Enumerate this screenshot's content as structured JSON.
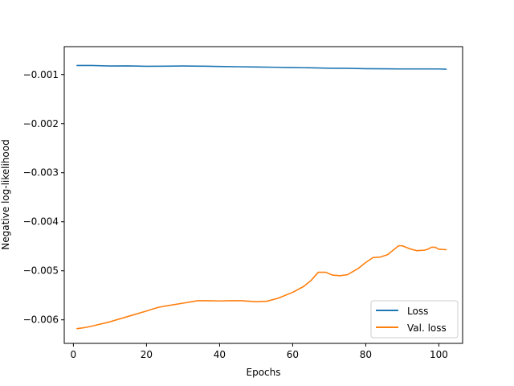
{
  "chart_data": {
    "type": "line",
    "title": "",
    "xlabel": "Epochs",
    "ylabel": "Negative log-likelihood",
    "xlim": [
      -2.5,
      106.5
    ],
    "ylim": [
      -0.00648,
      -0.00043
    ],
    "xticks": [
      0,
      20,
      40,
      60,
      80,
      100
    ],
    "yticks": [
      -0.006,
      -0.005,
      -0.004,
      -0.003,
      -0.002,
      -0.001
    ],
    "xtick_labels": [
      "0",
      "20",
      "40",
      "60",
      "80",
      "100"
    ],
    "ytick_labels": [
      "−0.006",
      "−0.005",
      "−0.004",
      "−0.003",
      "−0.002",
      "−0.001"
    ],
    "grid": false,
    "legend_position": "lower-right",
    "series": [
      {
        "name": "Loss",
        "color": "#1f77b4",
        "points": [
          [
            1,
            -0.000815
          ],
          [
            5,
            -0.000815
          ],
          [
            10,
            -0.000825
          ],
          [
            15,
            -0.000822
          ],
          [
            20,
            -0.00083
          ],
          [
            25,
            -0.000828
          ],
          [
            30,
            -0.000825
          ],
          [
            35,
            -0.000828
          ],
          [
            40,
            -0.000835
          ],
          [
            45,
            -0.00084
          ],
          [
            50,
            -0.000845
          ],
          [
            55,
            -0.00085
          ],
          [
            60,
            -0.000855
          ],
          [
            65,
            -0.000862
          ],
          [
            70,
            -0.00087
          ],
          [
            75,
            -0.000872
          ],
          [
            80,
            -0.00088
          ],
          [
            85,
            -0.000882
          ],
          [
            90,
            -0.000885
          ],
          [
            95,
            -0.000885
          ],
          [
            100,
            -0.000885
          ],
          [
            102,
            -0.00089
          ]
        ]
      },
      {
        "name": "Val. loss",
        "color": "#ff7f0e",
        "points": [
          [
            1,
            -0.00618
          ],
          [
            3,
            -0.00616
          ],
          [
            5,
            -0.00613
          ],
          [
            10,
            -0.00604
          ],
          [
            15,
            -0.00593
          ],
          [
            20,
            -0.00582
          ],
          [
            23,
            -0.00575
          ],
          [
            25,
            -0.00572
          ],
          [
            30,
            -0.00566
          ],
          [
            34,
            -0.00561
          ],
          [
            37,
            -0.00561
          ],
          [
            40,
            -0.005615
          ],
          [
            43,
            -0.00561
          ],
          [
            46,
            -0.00561
          ],
          [
            50,
            -0.00563
          ],
          [
            53,
            -0.00562
          ],
          [
            56,
            -0.00556
          ],
          [
            60,
            -0.00544
          ],
          [
            63,
            -0.00532
          ],
          [
            65,
            -0.0052
          ],
          [
            67,
            -0.00503
          ],
          [
            69,
            -0.00503
          ],
          [
            71,
            -0.00509
          ],
          [
            73,
            -0.0051
          ],
          [
            75,
            -0.00508
          ],
          [
            78,
            -0.00495
          ],
          [
            80,
            -0.00483
          ],
          [
            82,
            -0.00473
          ],
          [
            84,
            -0.00472
          ],
          [
            86,
            -0.00467
          ],
          [
            88,
            -0.00455
          ],
          [
            89,
            -0.00449
          ],
          [
            90,
            -0.00449
          ],
          [
            92,
            -0.00455
          ],
          [
            94,
            -0.00459
          ],
          [
            96,
            -0.00458
          ],
          [
            97,
            -0.00456
          ],
          [
            98,
            -0.00452
          ],
          [
            99,
            -0.00452
          ],
          [
            100,
            -0.00456
          ],
          [
            102,
            -0.00457
          ]
        ]
      }
    ]
  }
}
